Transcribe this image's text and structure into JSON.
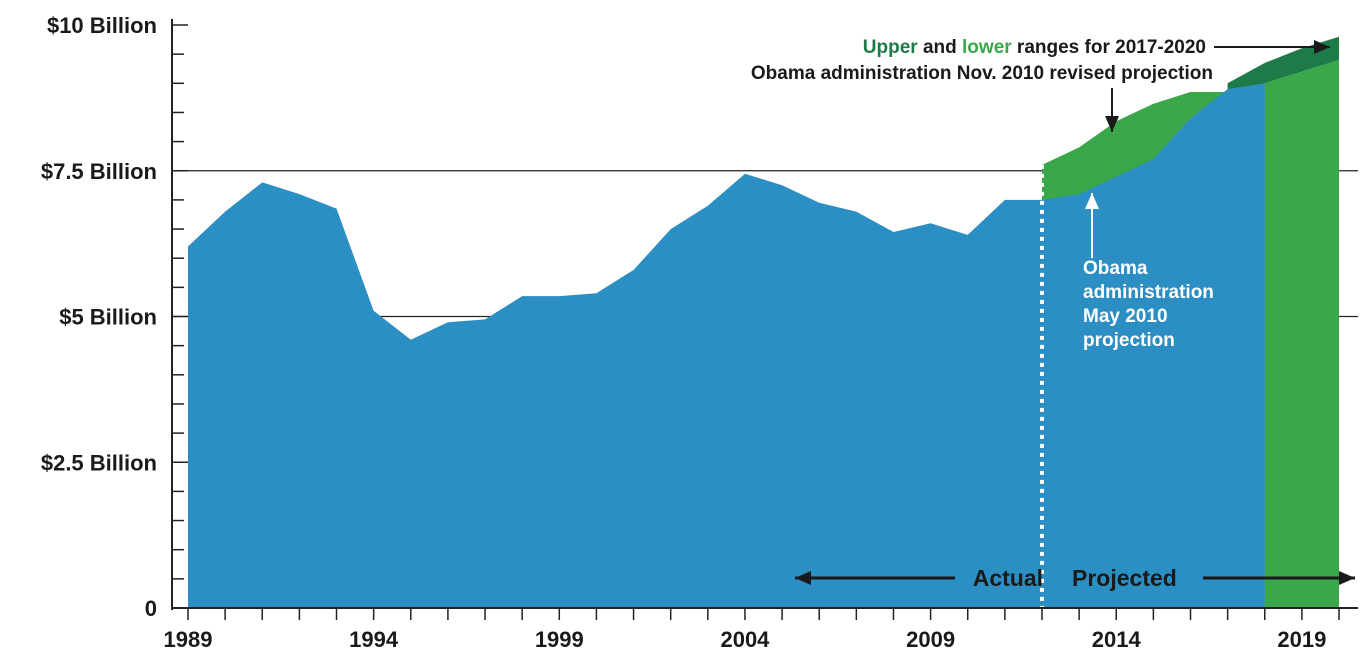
{
  "chart_data": {
    "type": "area",
    "title": "",
    "xlabel": "",
    "ylabel": "",
    "xlim": [
      1989,
      2020
    ],
    "ylim": [
      0,
      10
    ],
    "x_ticks": [
      1989,
      1994,
      1999,
      2004,
      2009,
      2014,
      2019
    ],
    "x_tick_labels": [
      "1989",
      "1994",
      "1999",
      "2004",
      "2009",
      "2014",
      "2019"
    ],
    "y_ticks": [
      0,
      2.5,
      5,
      7.5,
      10
    ],
    "y_tick_labels": [
      "0",
      "$2.5 Billion",
      "$5 Billion",
      "$7.5 Billion",
      "$10 Billion"
    ],
    "grid": "horizontal reference lines at 5 and 7.5",
    "colors": {
      "actual": "#2b8fc4",
      "nov_projection": "#3aa84a",
      "upper_range": "#1e7a46",
      "axis": "#222222",
      "annotation_white": "#ffffff"
    },
    "series": [
      {
        "name": "Actual",
        "x": [
          1989,
          1990,
          1991,
          1992,
          1993,
          1994,
          1995,
          1996,
          1997,
          1998,
          1999,
          2000,
          2001,
          2002,
          2003,
          2004,
          2005,
          2006,
          2007,
          2008,
          2009,
          2010,
          2011,
          2012
        ],
        "values": [
          6.2,
          6.8,
          7.3,
          7.1,
          6.85,
          5.1,
          4.6,
          4.9,
          4.95,
          5.35,
          5.35,
          5.4,
          5.8,
          6.5,
          6.9,
          7.45,
          7.25,
          6.95,
          6.8,
          6.45,
          6.6,
          6.4,
          7.0,
          7.0
        ]
      },
      {
        "name": "Obama administration May 2010 projection",
        "x": [
          2012,
          2013,
          2014,
          2015,
          2016,
          2017,
          2018
        ],
        "values": [
          7.0,
          7.1,
          7.4,
          7.7,
          8.4,
          8.9,
          9.0
        ]
      },
      {
        "name": "Obama administration Nov. 2010 revised projection",
        "x": [
          2012,
          2013,
          2014,
          2015,
          2016,
          2017,
          2018,
          2019,
          2020
        ],
        "values": [
          7.6,
          7.9,
          8.35,
          8.65,
          8.85,
          8.85,
          9.0,
          9.2,
          9.4
        ]
      },
      {
        "name": "Upper range",
        "x": [
          2017,
          2018,
          2019,
          2020
        ],
        "values": [
          9.0,
          9.35,
          9.6,
          9.8
        ]
      }
    ],
    "divider_year": 2012,
    "annotations": {
      "range_word_upper": "Upper",
      "range_word_and": " and ",
      "range_word_lower": "lower",
      "range_rest": " ranges for 2017-2020",
      "nov_label": "Obama administration Nov. 2010 revised projection",
      "may_label_lines": [
        "Obama",
        "administration",
        "May 2010",
        "projection"
      ],
      "actual_label": "Actual",
      "projected_label": "Projected"
    }
  }
}
